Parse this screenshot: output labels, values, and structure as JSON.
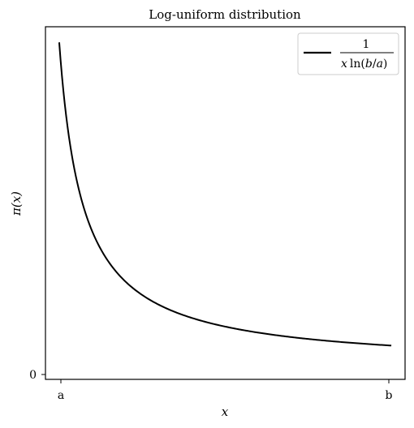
{
  "chart_data": {
    "type": "line",
    "title": "Log-uniform distribution",
    "xlabel": "x",
    "ylabel": "π(x)",
    "x_tick_labels": [
      "a",
      "b"
    ],
    "y_tick_labels": [
      "0"
    ],
    "grid": false,
    "legend_position": "top-right",
    "series": [
      {
        "name_numerator": "1",
        "name_denominator_parts": [
          "x",
          "ln(",
          "b",
          "/",
          "a",
          ")"
        ],
        "color": "#000000",
        "formula": "1 / (x ln(b/a))",
        "x": [
          1,
          1.5,
          2,
          3,
          4,
          5,
          6,
          7,
          8,
          9,
          10,
          12,
          15
        ],
        "y": [
          0.369,
          0.246,
          0.185,
          0.123,
          0.092,
          0.074,
          0.062,
          0.053,
          0.046,
          0.041,
          0.037,
          0.031,
          0.025
        ],
        "x_range": [
          1,
          15
        ]
      }
    ],
    "xlim": [
      0.42,
      15.58
    ],
    "ylim": [
      -0.0138,
      0.387
    ]
  }
}
